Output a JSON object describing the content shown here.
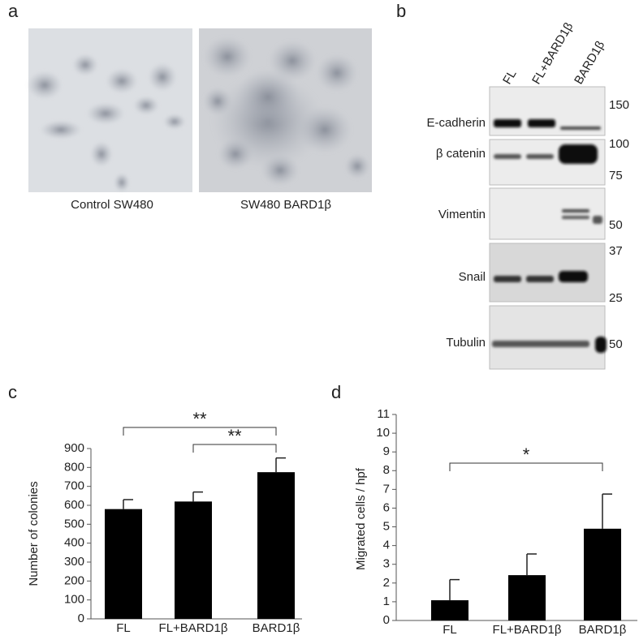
{
  "figure": {
    "panel_labels": [
      "a",
      "b",
      "c",
      "d"
    ],
    "micrographs": [
      "Control SW480",
      "SW480 BARD1β"
    ],
    "blot": {
      "lanes": [
        "FL",
        "FL+BARD1β",
        "BARD1β"
      ],
      "rows": [
        "E-cadherin",
        "β catenin",
        "Vimentin",
        "Snail",
        "Tubulin"
      ],
      "markers": [
        "150",
        "100",
        "75",
        "50",
        "37",
        "25",
        "50"
      ]
    }
  },
  "chart_data": [
    {
      "type": "bar",
      "y_label": "Number of colonies",
      "categories": [
        "FL",
        "FL+BARD1β",
        "BARD1β"
      ],
      "values": [
        580,
        620,
        775
      ],
      "errors": [
        50,
        50,
        75
      ],
      "color": "#000000",
      "ylim": [
        0,
        900
      ],
      "yticks": [
        0,
        100,
        200,
        300,
        400,
        500,
        600,
        700,
        800,
        900
      ],
      "annotations": [
        "**",
        "**"
      ]
    },
    {
      "type": "bar",
      "y_label": "Migrated cells / hpf",
      "categories": [
        "FL",
        "FL+BARD1β",
        "BARD1β"
      ],
      "values": [
        1.08,
        2.42,
        4.9
      ],
      "errors": [
        1.1,
        1.13,
        1.85
      ],
      "color": "#000000",
      "ylim": [
        0,
        11
      ],
      "yticks": [
        0,
        1,
        2,
        3,
        4,
        5,
        6,
        7,
        8,
        9,
        10,
        11
      ],
      "annotations": [
        "*"
      ]
    }
  ]
}
